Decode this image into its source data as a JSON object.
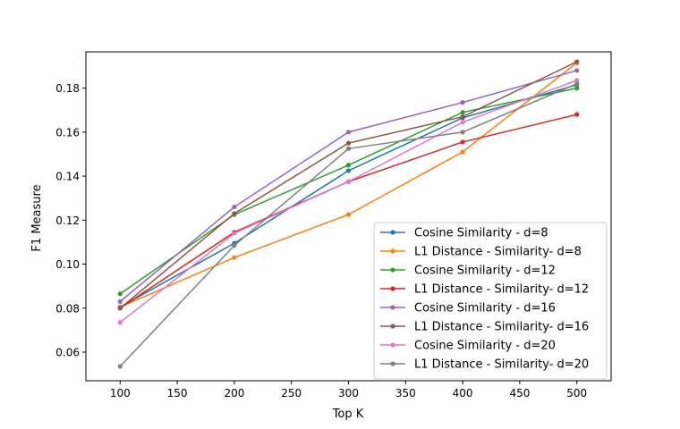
{
  "chart_data": {
    "type": "line",
    "title": "",
    "xlabel": "Top K",
    "ylabel": "F1 Measure",
    "x": [
      100,
      200,
      300,
      400,
      500
    ],
    "xlim": [
      70,
      530
    ],
    "ylim": [
      0.047,
      0.1965
    ],
    "xticks": [
      100,
      150,
      200,
      250,
      300,
      350,
      400,
      450,
      500
    ],
    "yticks": [
      0.06,
      0.08,
      0.1,
      0.12,
      0.14,
      0.16,
      0.18
    ],
    "grid": false,
    "legend_position": "lower-right",
    "series": [
      {
        "name": "Cosine Similarity - d=8",
        "color": "#1f77b4",
        "values": [
          0.0805,
          0.1095,
          0.1425,
          0.1665,
          0.1815
        ]
      },
      {
        "name": "L1 Distance - Similarity- d=8",
        "color": "#ff7f0e",
        "values": [
          0.0805,
          0.103,
          0.1225,
          0.151,
          0.1915
        ]
      },
      {
        "name": "Cosine Similarity - d=12",
        "color": "#2ca02c",
        "values": [
          0.0865,
          0.1225,
          0.145,
          0.169,
          0.18
        ]
      },
      {
        "name": "L1 Distance - Similarity- d=12",
        "color": "#d62728",
        "values": [
          0.08,
          0.1145,
          0.1375,
          0.1555,
          0.168
        ]
      },
      {
        "name": "Cosine Similarity - d=16",
        "color": "#9467bd",
        "values": [
          0.083,
          0.126,
          0.16,
          0.1735,
          0.188
        ]
      },
      {
        "name": "L1 Distance - Similarity- d=16",
        "color": "#8c564b",
        "values": [
          0.08,
          0.123,
          0.155,
          0.167,
          0.192
        ]
      },
      {
        "name": "Cosine Similarity - d=20",
        "color": "#e377c2",
        "values": [
          0.0735,
          0.114,
          0.1375,
          0.1645,
          0.1835
        ]
      },
      {
        "name": "L1 Distance - Similarity- d=20",
        "color": "#7f7f7f",
        "values": [
          0.0535,
          0.1085,
          0.1525,
          0.16,
          0.182
        ]
      }
    ]
  }
}
